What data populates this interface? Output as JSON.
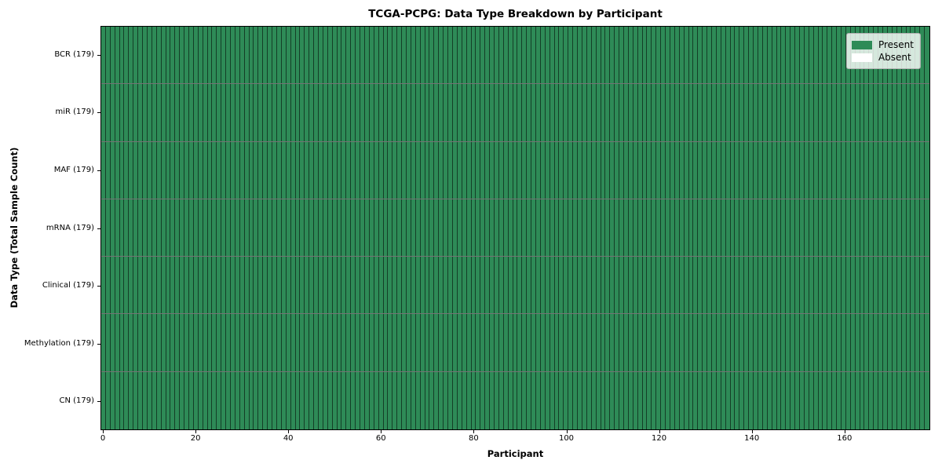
{
  "chart_data": {
    "type": "heatmap",
    "title": "TCGA-PCPG: Data Type Breakdown by Participant",
    "xlabel": "Participant",
    "ylabel": "Data Type (Total Sample Count)",
    "n_participants": 179,
    "x_range": [
      -0.5,
      178.5
    ],
    "x_ticks": [
      0,
      20,
      40,
      60,
      80,
      100,
      120,
      140,
      160
    ],
    "categories": [
      "BCR (179)",
      "miR (179)",
      "MAF (179)",
      "mRNA (179)",
      "Clinical (179)",
      "Methylation (179)",
      "CN (179)"
    ],
    "rows": [
      {
        "label": "BCR (179)",
        "data_type": "BCR",
        "total_samples": 179,
        "present_count": 179,
        "absent_count": 0,
        "absent_indices": []
      },
      {
        "label": "miR (179)",
        "data_type": "miR",
        "total_samples": 179,
        "present_count": 179,
        "absent_count": 0,
        "absent_indices": []
      },
      {
        "label": "MAF (179)",
        "data_type": "MAF",
        "total_samples": 179,
        "present_count": 179,
        "absent_count": 0,
        "absent_indices": []
      },
      {
        "label": "mRNA (179)",
        "data_type": "mRNA",
        "total_samples": 179,
        "present_count": 179,
        "absent_count": 0,
        "absent_indices": []
      },
      {
        "label": "Clinical (179)",
        "data_type": "Clinical",
        "total_samples": 179,
        "present_count": 179,
        "absent_count": 0,
        "absent_indices": []
      },
      {
        "label": "Methylation (179)",
        "data_type": "Methylation",
        "total_samples": 179,
        "present_count": 179,
        "absent_count": 0,
        "absent_indices": []
      },
      {
        "label": "CN (179)",
        "data_type": "CN",
        "total_samples": 179,
        "present_count": 179,
        "absent_count": 0,
        "absent_indices": []
      }
    ],
    "legend": {
      "position": "upper-right",
      "entries": [
        {
          "label": "Present",
          "color": "#2e8b57"
        },
        {
          "label": "Absent",
          "color": "#ffffff"
        }
      ]
    },
    "colors": {
      "present": "#2e8b57",
      "absent": "#ffffff",
      "cell_edge": "rgba(0,0,0,0.55)",
      "spine": "#000000"
    },
    "grid": "cell-borders",
    "legend_position": "upper-right"
  }
}
